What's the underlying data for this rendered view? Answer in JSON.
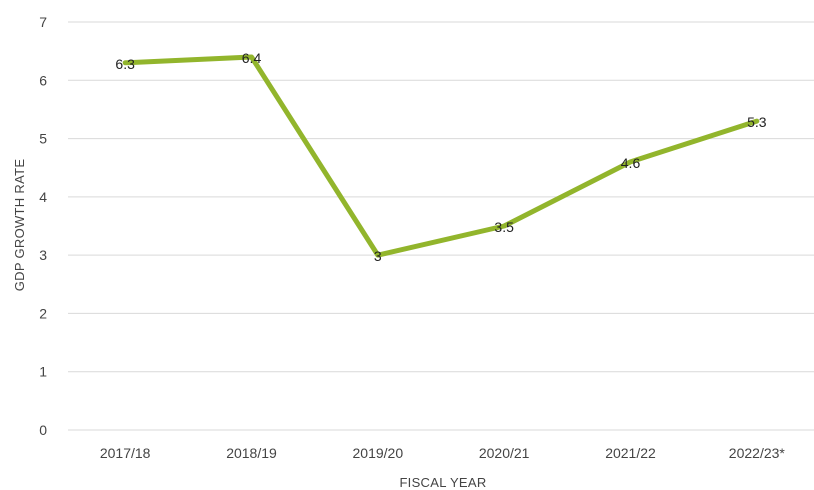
{
  "chart_data": {
    "type": "line",
    "title": "",
    "xlabel": "FISCAL YEAR",
    "ylabel": "GDP GROWTH RATE",
    "categories": [
      "2017/18",
      "2018/19",
      "2019/20",
      "2020/21",
      "2021/22",
      "2022/23*"
    ],
    "series": [
      {
        "values": [
          6.3,
          6.4,
          3,
          3.5,
          4.6,
          5.3
        ],
        "data_labels": [
          "6.3",
          "6.4",
          "3",
          "3.5",
          "4.6",
          "5.3"
        ]
      }
    ],
    "ylim": [
      0,
      7
    ],
    "yticks": [
      0,
      1,
      2,
      3,
      4,
      5,
      6,
      7
    ],
    "grid": true,
    "legend": "none",
    "colors": {
      "line": "#92b52c",
      "grid": "#d9d9d9"
    }
  }
}
